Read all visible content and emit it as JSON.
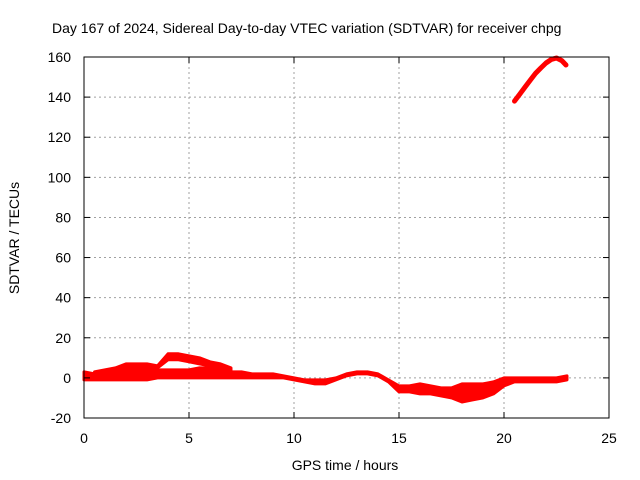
{
  "chart_data": {
    "type": "line",
    "title": "Day 167 of 2024, Sidereal Day-to-day VTEC variation (SDTVAR) for receiver chpg",
    "xlabel": "GPS time / hours",
    "ylabel": "SDTVAR / TECUs",
    "xlim": [
      0,
      25
    ],
    "ylim": [
      -20,
      160
    ],
    "xticks": [
      "0",
      "5",
      "10",
      "15",
      "20",
      "25"
    ],
    "yticks": [
      "-20",
      "0",
      "20",
      "40",
      "60",
      "80",
      "100",
      "120",
      "140",
      "160"
    ],
    "grid": true,
    "legend": "none",
    "series_color": "#ff0000",
    "series": [
      {
        "name": "SDTVAR band main",
        "x": [
          0,
          0.5,
          1,
          1.5,
          2,
          2.5,
          3,
          3.5,
          4,
          4.5,
          5,
          5.5,
          6,
          6.5,
          7,
          7.5,
          8,
          8.5,
          9,
          9.5,
          10,
          10.5,
          11,
          11.5,
          12,
          12.5,
          13,
          13.5,
          14,
          14.5,
          15,
          15.5,
          16,
          16.5,
          17,
          17.5,
          18,
          18.5,
          19,
          19.5,
          20,
          20.5,
          21,
          21.5,
          22,
          22.5,
          23
        ],
        "low": [
          -1,
          -1,
          -1,
          -1,
          -1,
          -1,
          -1,
          0,
          0,
          0,
          0,
          0,
          0,
          0,
          0,
          0,
          0,
          0,
          0,
          0,
          -1,
          -2,
          -3,
          -3,
          -1,
          1,
          2,
          2,
          1,
          -2,
          -7,
          -7,
          -8,
          -8,
          -9,
          -10,
          -12,
          -11,
          -10,
          -8,
          -4,
          -2,
          -2,
          -2,
          -2,
          -2,
          -1
        ],
        "high": [
          3,
          2,
          3,
          3,
          4,
          4,
          4,
          4,
          4,
          4,
          4,
          5,
          5,
          5,
          3,
          3,
          2,
          2,
          2,
          1,
          0,
          -1,
          -1,
          -1,
          0,
          2,
          3,
          3,
          2,
          -1,
          -4,
          -4,
          -3,
          -4,
          -5,
          -5,
          -3,
          -3,
          -3,
          -2,
          0,
          0,
          0,
          0,
          0,
          0,
          1
        ]
      },
      {
        "name": "SDTVAR band upper",
        "x": [
          0.5,
          1,
          1.5,
          2,
          2.5,
          3,
          3.5,
          4,
          4.5,
          5,
          5.5,
          6,
          6.5,
          7
        ],
        "low": [
          1,
          2,
          3,
          4,
          5,
          5,
          5,
          9,
          9,
          8,
          7,
          6,
          5,
          3
        ],
        "high": [
          3,
          4,
          5,
          7,
          7,
          7,
          6,
          12,
          12,
          11,
          10,
          8,
          7,
          5
        ]
      },
      {
        "name": "SDTVAR late rise",
        "x": [
          20.5,
          20.75,
          21,
          21.25,
          21.5,
          21.75,
          22,
          22.25,
          22.5,
          22.75,
          22.95
        ],
        "y": [
          138,
          141.5,
          145,
          148.5,
          151.8,
          154.5,
          157,
          158.8,
          159.5,
          158.2,
          156
        ]
      }
    ]
  }
}
